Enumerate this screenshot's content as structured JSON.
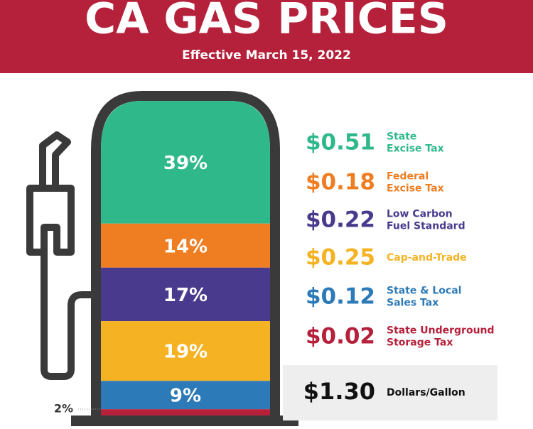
{
  "chart_data": {
    "type": "pump",
    "title": "CA GAS PRICES",
    "subtitle": "Effective March 15, 2022",
    "categories": [
      [
        "State",
        "Excise Tax"
      ],
      [
        "Federal",
        "Excise Tax"
      ],
      [
        "Low Carbon",
        "Fuel Standard"
      ],
      [
        "Cap-and-Trade"
      ],
      [
        "State & Local",
        "Sales Tax"
      ],
      [
        "State Underground",
        "Storage Tax"
      ]
    ],
    "values": [
      39,
      14,
      17,
      19,
      9,
      2
    ],
    "value_labels": [
      "39%",
      "14%",
      "17%",
      "19%",
      "9%",
      "2%"
    ],
    "amounts": [
      0.51,
      0.18,
      0.22,
      0.25,
      0.12,
      0.02
    ],
    "amount_labels": [
      "$0.51",
      "$0.18",
      "$0.22",
      "$0.25",
      "$0.12",
      "$0.02"
    ],
    "colors": [
      "#2fb98a",
      "#ef7d22",
      "#4a3a8e",
      "#f5b324",
      "#2d7ab8",
      "#b5203a"
    ],
    "total": 1.3,
    "total_label": "$1.30",
    "total_unit": "Dollars/Gallon"
  }
}
